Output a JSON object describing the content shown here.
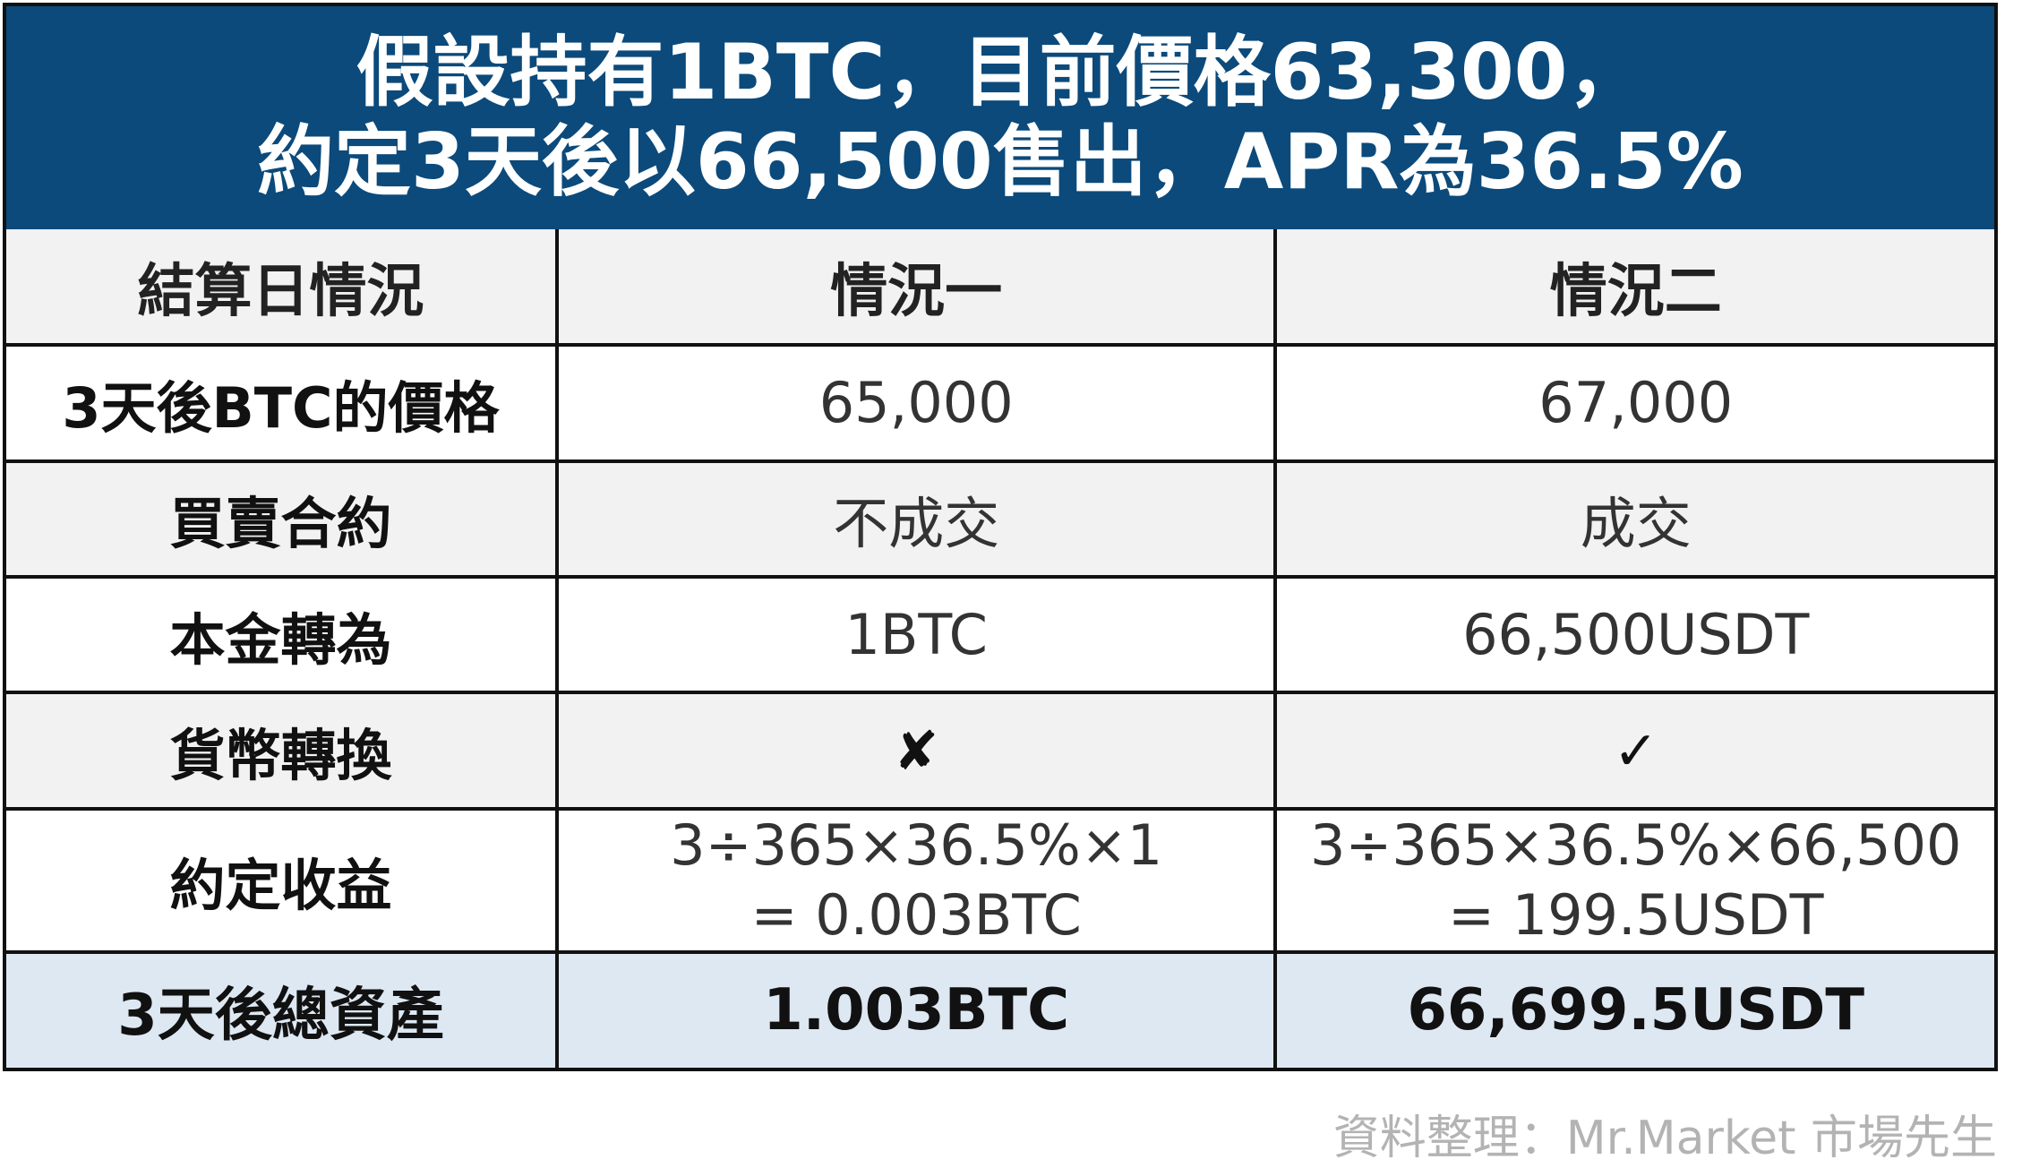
{
  "title": {
    "line1": "假設持有1BTC，目前價格63,300，",
    "line2": "約定3天後以66,500售出，APR為36.5%"
  },
  "table": {
    "headers": [
      "結算日情況",
      "情況一",
      "情況二"
    ],
    "rows": [
      {
        "label": "3天後BTC的價格",
        "case1": "65,000",
        "case2": "67,000"
      },
      {
        "label": "買賣合約",
        "case1": "不成交",
        "case2": "成交"
      },
      {
        "label": "本金轉為",
        "case1": "1BTC",
        "case2": "66,500USDT"
      },
      {
        "label": "貨幣轉換",
        "case1": "✘",
        "case2": "✓"
      },
      {
        "label": "約定收益",
        "case1_line1": "3÷365×36.5%×1",
        "case1_line2": "= 0.003BTC",
        "case2_line1": "3÷365×36.5%×66,500",
        "case2_line2": "= 199.5USDT"
      },
      {
        "label": "3天後總資產",
        "case1": "1.003BTC",
        "case2": "66,699.5USDT"
      }
    ]
  },
  "source": "資料整理：Mr.Market 市場先生",
  "colors": {
    "title_bg": "#0b4a7b",
    "row_shade": "#f2f2f2",
    "total_row": "#dde8f3",
    "source_text": "#b3b3b3"
  }
}
